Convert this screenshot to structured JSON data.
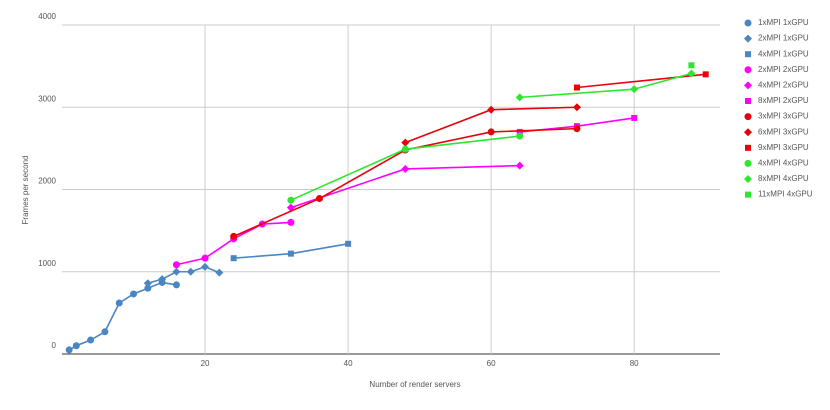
{
  "chart_data": {
    "type": "line",
    "x_label": "Number of render servers",
    "y_label": "Frames per second",
    "xlim": [
      0,
      92
    ],
    "xticks": [
      20,
      40,
      60,
      80
    ],
    "ylim": [
      0,
      4000
    ],
    "yticks": [
      0,
      1000,
      2000,
      3000,
      4000
    ],
    "grid": true,
    "legend": "right",
    "series": [
      {
        "name": "1xMPI 1xGPU",
        "color": "#4a86c4",
        "marker": "circle",
        "x": [
          1,
          2,
          4,
          6,
          8,
          10,
          12,
          14,
          16
        ],
        "values": [
          50,
          100,
          170,
          270,
          620,
          730,
          800,
          870,
          840
        ]
      },
      {
        "name": "2xMPI 1xGPU",
        "color": "#4a86c4",
        "marker": "diamond",
        "x": [
          12,
          14,
          16,
          18,
          20,
          22
        ],
        "values": [
          860,
          910,
          1000,
          1000,
          1060,
          990
        ]
      },
      {
        "name": "4xMPI 1xGPU",
        "color": "#4a86c4",
        "marker": "square",
        "x": [
          24,
          32,
          40
        ],
        "values": [
          1165,
          1220,
          1340
        ]
      },
      {
        "name": "2xMPI 2xGPU",
        "color": "#ff00ff",
        "marker": "circle",
        "x": [
          16,
          20,
          24,
          28,
          32
        ],
        "values": [
          1085,
          1165,
          1400,
          1580,
          1600
        ]
      },
      {
        "name": "4xMPI 2xGPU",
        "color": "#ff00ff",
        "marker": "diamond",
        "x": [
          32,
          48,
          64
        ],
        "values": [
          1780,
          2250,
          2290
        ]
      },
      {
        "name": "8xMPI 2xGPU",
        "color": "#ff00ff",
        "marker": "square",
        "x": [
          64,
          72,
          80
        ],
        "values": [
          2700,
          2770,
          2870
        ]
      },
      {
        "name": "3xMPI 3xGPU",
        "color": "#e8000b",
        "marker": "circle",
        "x": [
          24,
          36,
          48,
          60,
          72
        ],
        "values": [
          1430,
          1890,
          2480,
          2700,
          2740
        ]
      },
      {
        "name": "6xMPI 3xGPU",
        "color": "#e8000b",
        "marker": "diamond",
        "x": [
          48,
          60,
          72
        ],
        "values": [
          2570,
          2970,
          3000
        ]
      },
      {
        "name": "9xMPI 3xGPU",
        "color": "#e8000b",
        "marker": "square",
        "x": [
          72,
          90
        ],
        "values": [
          3240,
          3400
        ]
      },
      {
        "name": "4xMPI 4xGPU",
        "color": "#2ee62e",
        "marker": "circle",
        "x": [
          32,
          48,
          64
        ],
        "values": [
          1870,
          2490,
          2650
        ]
      },
      {
        "name": "8xMPI 4xGPU",
        "color": "#2ee62e",
        "marker": "diamond",
        "x": [
          64,
          80,
          88
        ],
        "values": [
          3120,
          3220,
          3410
        ]
      },
      {
        "name": "11xMPI 4xGPU",
        "color": "#2ee62e",
        "marker": "square",
        "x": [
          88
        ],
        "values": [
          3510
        ]
      }
    ]
  }
}
